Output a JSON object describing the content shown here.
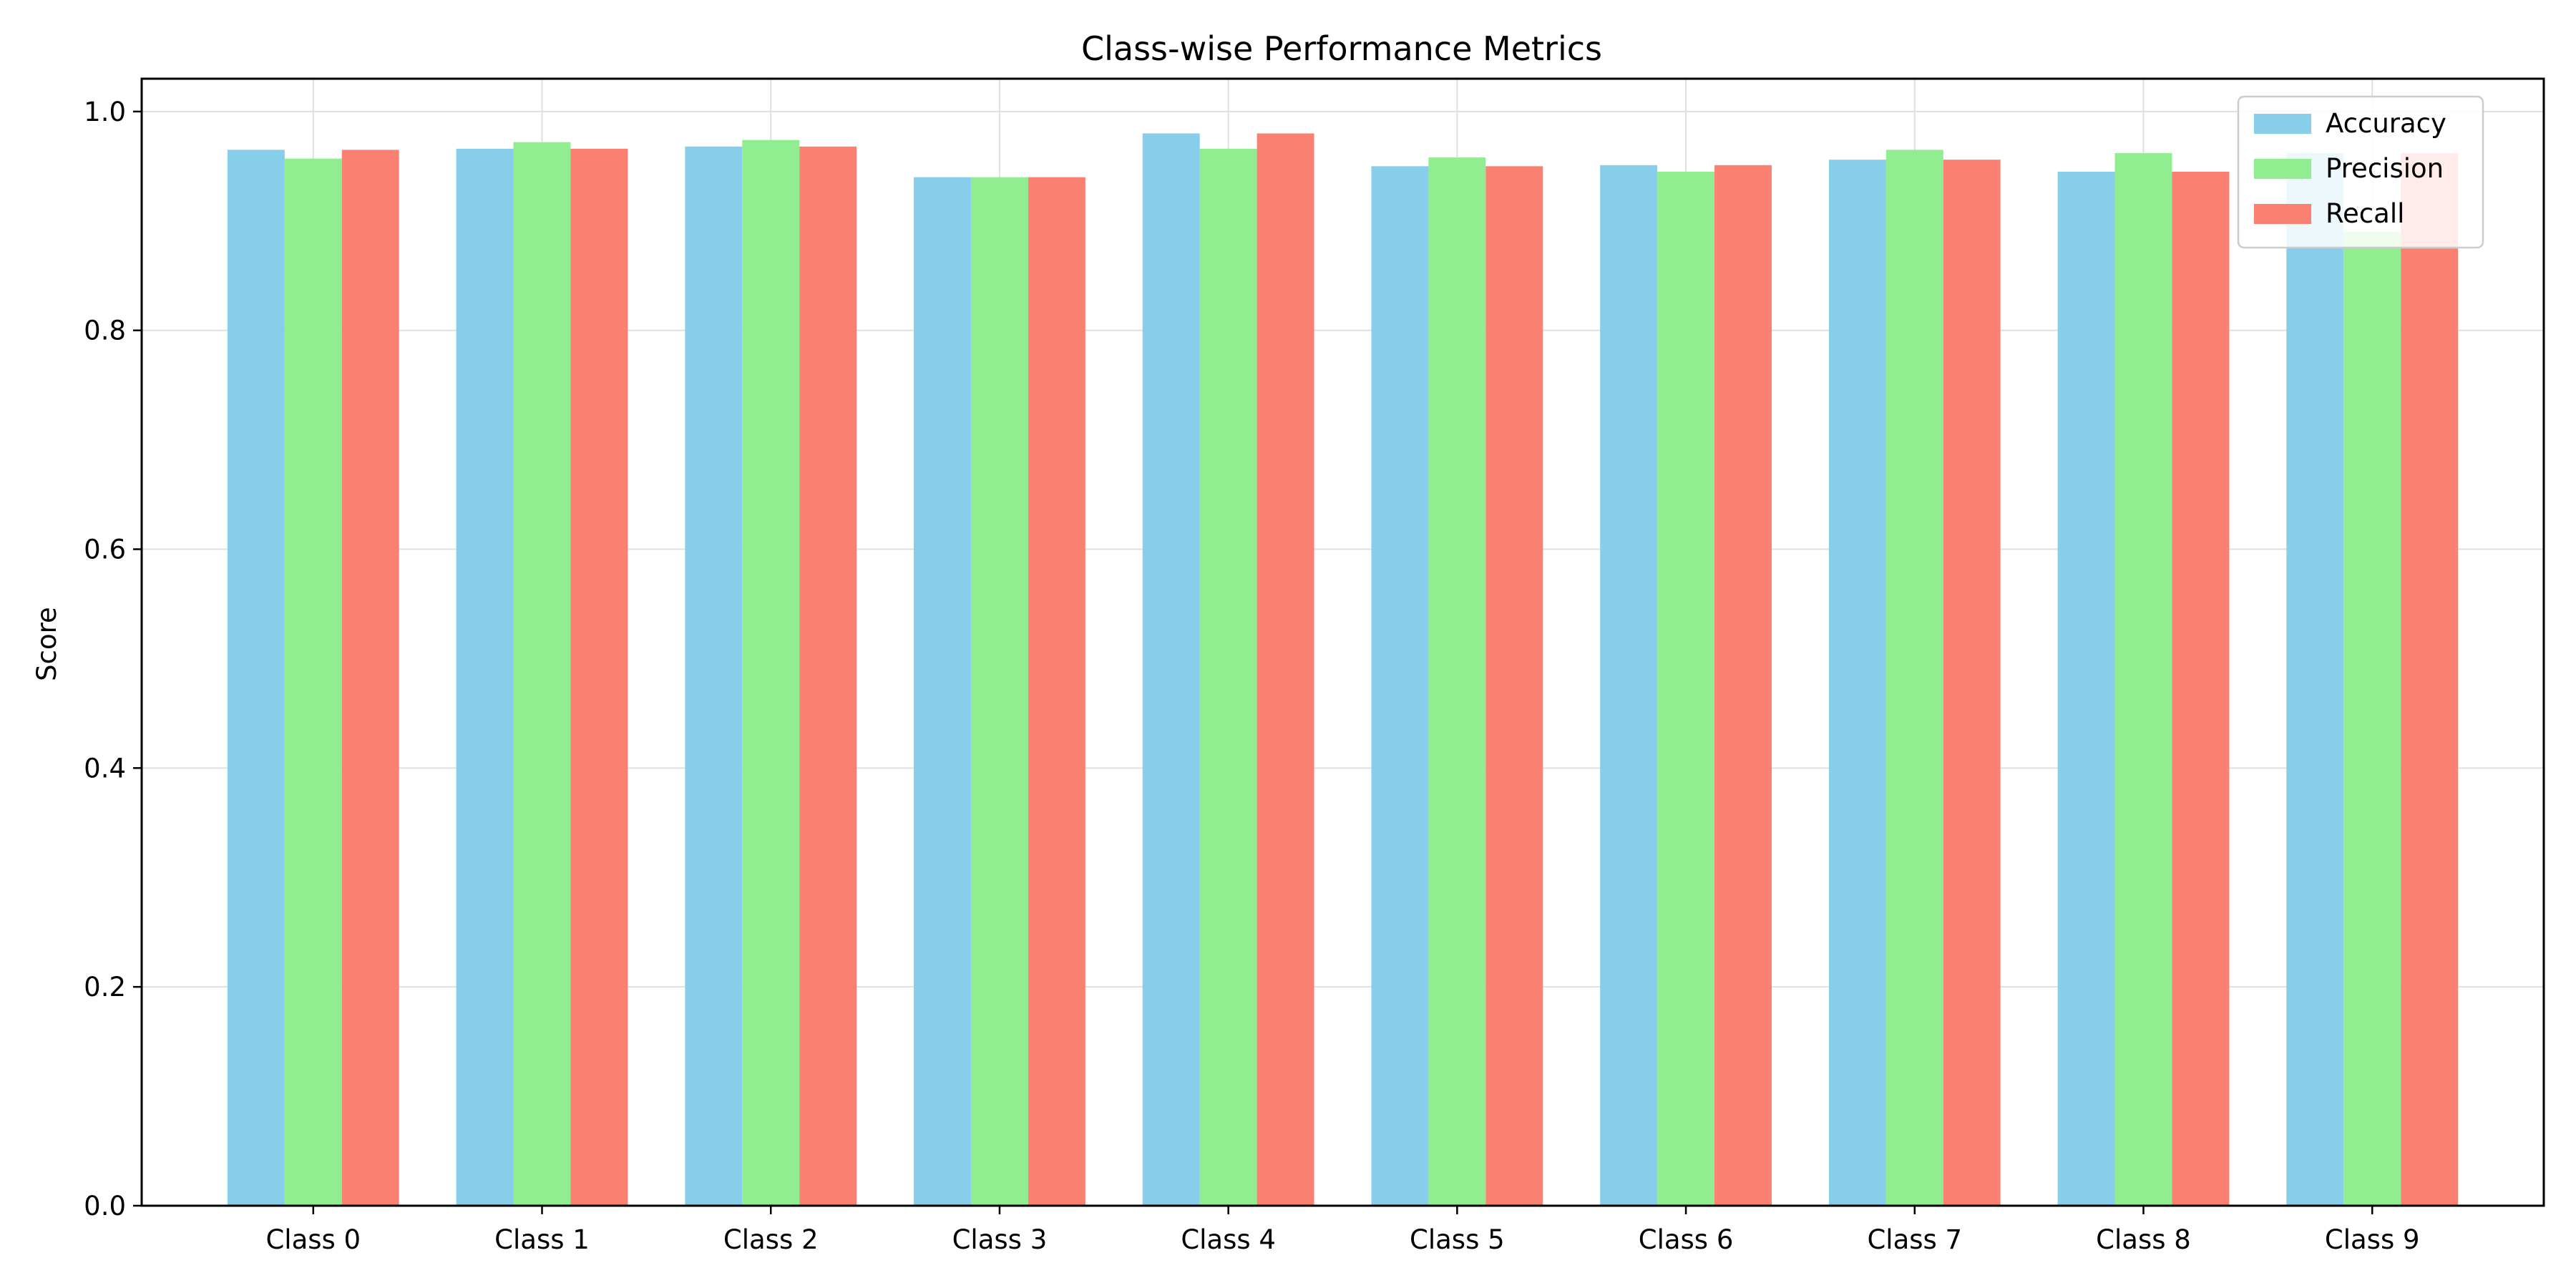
{
  "chart_data": {
    "type": "bar",
    "title": "Class-wise Performance Metrics",
    "xlabel": "",
    "ylabel": "Score",
    "ylim": [
      0,
      1.03
    ],
    "yticks": [
      "0.0",
      "0.2",
      "0.4",
      "0.6",
      "0.8",
      "1.0"
    ],
    "grid": true,
    "legend_position": "top-right",
    "categories": [
      "Class 0",
      "Class 1",
      "Class 2",
      "Class 3",
      "Class 4",
      "Class 5",
      "Class 6",
      "Class 7",
      "Class 8",
      "Class 9"
    ],
    "series": [
      {
        "name": "Accuracy",
        "color": "#87ceeb",
        "values": [
          0.965,
          0.966,
          0.968,
          0.94,
          0.98,
          0.95,
          0.951,
          0.956,
          0.945,
          0.962
        ]
      },
      {
        "name": "Precision",
        "color": "#90ee90",
        "values": [
          0.957,
          0.972,
          0.974,
          0.94,
          0.966,
          0.958,
          0.945,
          0.965,
          0.962,
          0.89
        ]
      },
      {
        "name": "Recall",
        "color": "#fa8072",
        "values": [
          0.965,
          0.966,
          0.968,
          0.94,
          0.98,
          0.95,
          0.951,
          0.956,
          0.945,
          0.962
        ]
      }
    ]
  }
}
